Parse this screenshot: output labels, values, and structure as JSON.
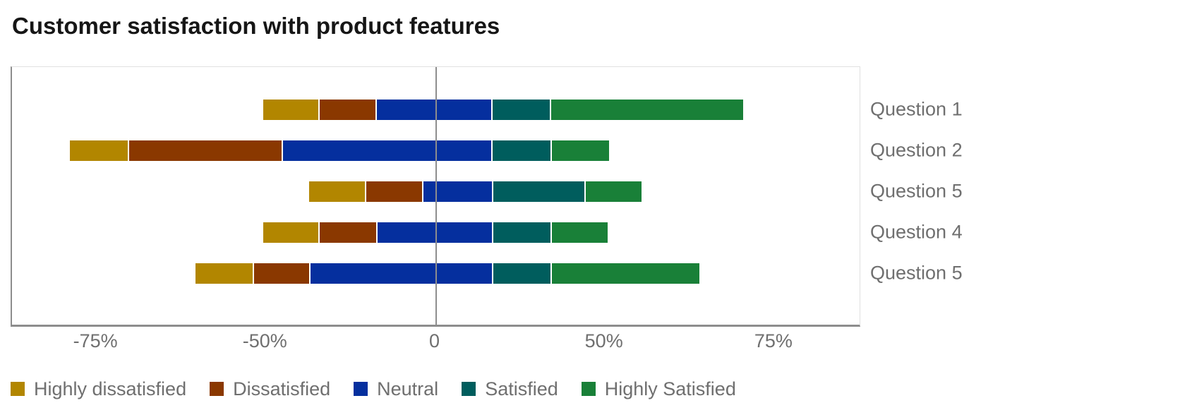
{
  "title": "Customer satisfaction with product features",
  "colors": {
    "axis_line": "#8d8d8d",
    "plot_border": "#e0e0e0",
    "zero_line": "#8d8d8d",
    "title_text": "#161616",
    "muted_text": "#6f6f6f"
  },
  "chart_data": {
    "type": "bar",
    "orientation": "horizontal",
    "stacked": true,
    "diverging": true,
    "title": "Customer satisfaction with product features",
    "xlabel": "",
    "ylabel": "",
    "grid": false,
    "legend_position": "bottom",
    "categories": [
      "Question 1",
      "Question 2",
      "Question 5",
      "Question 4",
      "Question 5"
    ],
    "series": [
      {
        "name": "Highly dissatisfied",
        "color": "#b28600"
      },
      {
        "name": "Dissatisfied",
        "color": "#8a3800"
      },
      {
        "name": "Neutral",
        "color": "#052f9e"
      },
      {
        "name": "Satisfied",
        "color": "#005d5d"
      },
      {
        "name": "Highly Satisfied",
        "color": "#198038"
      }
    ],
    "x_ticks": {
      "values": [
        -75,
        -50,
        0,
        50,
        75
      ],
      "labels": [
        "-75%",
        "-50%",
        "0",
        "50%",
        "75%"
      ],
      "note_positions": "ticks are evenly spaced across the axis at fractions 0.1, 0.3, 0.5, 0.7, 0.9"
    },
    "zero_value": 0,
    "segment_bounds_per_category": [
      [
        -50.6,
        -34.5,
        -17.6,
        16.6,
        33.8,
        70.4
      ],
      [
        -79.1,
        -70.3,
        -45.3,
        16.6,
        34.0,
        50.7
      ],
      [
        -37.6,
        -20.7,
        -3.9,
        16.8,
        44.0,
        55.4
      ],
      [
        -50.6,
        -34.5,
        -17.4,
        16.8,
        34.0,
        50.5
      ],
      [
        -60.5,
        -51.9,
        -37.2,
        16.8,
        34.0,
        64.0
      ]
    ]
  }
}
